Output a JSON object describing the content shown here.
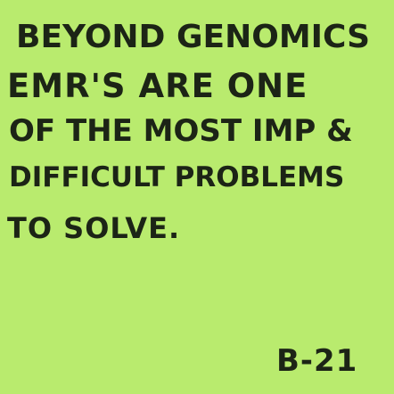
{
  "note": {
    "lines": [
      "BEYOND GENOMICS",
      "EMR'S ARE ONE",
      "OF THE MOST IMP &",
      "DIFFICULT PROBLEMS",
      "TO SOLVE."
    ],
    "signature": "B-21",
    "paper_color": "#b9eb6e",
    "ink_color": "#1c2416"
  }
}
